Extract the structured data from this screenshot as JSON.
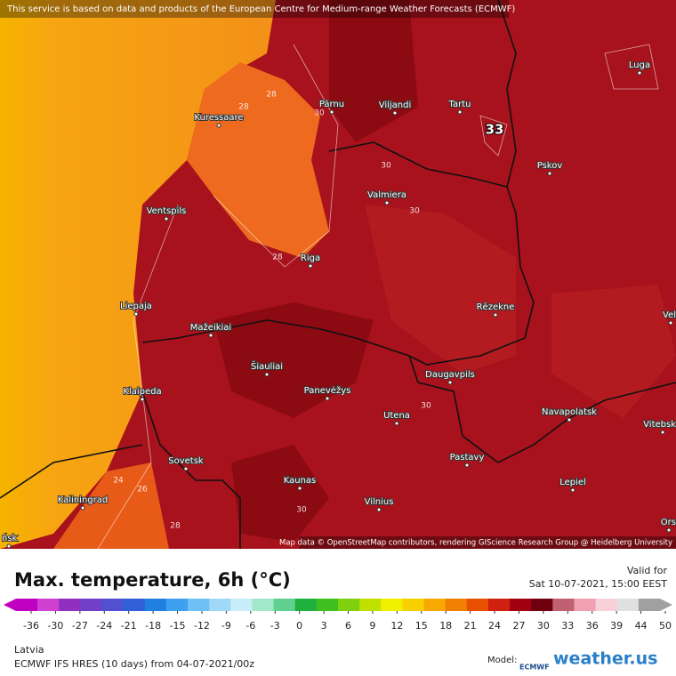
{
  "notice": "This service is based on data and products of the European Centre for Medium-range Weather Forecasts (ECMWF)",
  "attribution": "Map data © OpenStreetMap contributors, rendering GIScience Research Group @ Heidelberg University",
  "cities": [
    "Kuressaare",
    "Pärnu",
    "Viljandi",
    "Tartu",
    "Luga",
    "Pskov",
    "Valmiera",
    "Ventspils",
    "Riga",
    "Liepaja",
    "Rēzekne",
    "Mažeikiai",
    "Šiauliai",
    "Panevėžys",
    "Daugavpils",
    "Klaipeda",
    "Utena",
    "Navapolatsk",
    "Vitebsk",
    "Sovetsk",
    "Pastavy",
    "Kaunas",
    "Lepiel",
    "Vilnius",
    "Kaliningrad",
    "Vel",
    "Ors",
    "ńsk"
  ],
  "contour_labels": [
    33,
    28,
    28,
    30,
    30,
    30,
    28,
    30,
    24,
    26,
    28,
    30
  ],
  "legend": {
    "title": "Max. temperature, 6h (°C)",
    "valid_label": "Valid for",
    "valid_time": "Sat 10-07-2021, 15:00 EEST",
    "ticks": [
      -36,
      -30,
      -27,
      -24,
      -21,
      -18,
      -15,
      -12,
      -9,
      -6,
      -3,
      0,
      3,
      6,
      9,
      12,
      15,
      18,
      21,
      24,
      27,
      30,
      33,
      36,
      39,
      44,
      50
    ],
    "colors": [
      "#c000c0",
      "#d040d0",
      "#9030c0",
      "#7040c8",
      "#5050d0",
      "#3060d8",
      "#2080e0",
      "#40a0f0",
      "#70c0f8",
      "#a0d8f8",
      "#c8ecf8",
      "#a0e8c8",
      "#60d090",
      "#20b040",
      "#40c020",
      "#80d010",
      "#c0e000",
      "#f0f000",
      "#f8d000",
      "#f8a800",
      "#f08000",
      "#e85000",
      "#d02010",
      "#a00010",
      "#700010",
      "#c06070",
      "#f0a0b0",
      "#f8d0d8",
      "#e0e0e0",
      "#a0a0a0"
    ]
  },
  "region": "Latvia",
  "model_run": "ECMWF IFS HRES (10 days) from 04-07-2021/00z",
  "model_label": "Model:",
  "model_name": "ECMWF",
  "brand": "weather.us"
}
